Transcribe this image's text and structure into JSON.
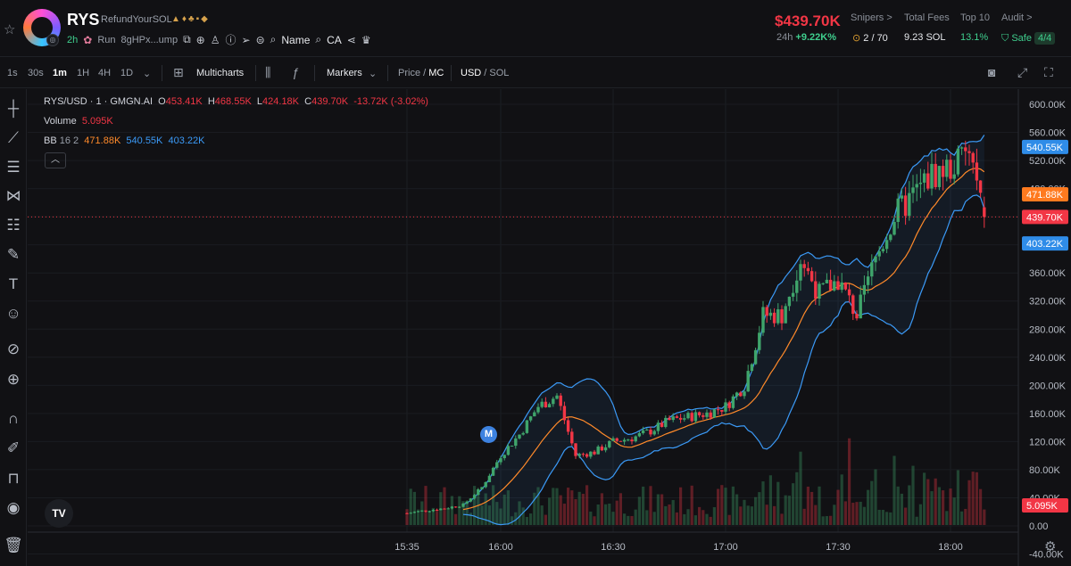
{
  "header": {
    "ticker": "RYS",
    "name": "RefundYourSOL",
    "age": "2h",
    "run_label": "Run",
    "address": "8gHPx...ump",
    "name_label": "Name",
    "ca_label": "CA",
    "price": "$439.70K",
    "change_label": "24h",
    "change_value": "+9.22K%",
    "snipers_label": "Snipers >",
    "snipers_value": "2 / 70",
    "fees_label": "Total Fees",
    "fees_value": "9.23 SOL",
    "top10_label": "Top 10",
    "top10_value": "13.1%",
    "audit_label": "Audit >",
    "audit_value": "Safe",
    "audit_score": "4/4"
  },
  "toolbar": {
    "intervals": [
      "1s",
      "30s",
      "1m",
      "1H",
      "4H",
      "1D"
    ],
    "active_interval": "1m",
    "multicharts": "Multicharts",
    "markers": "Markers",
    "price_label": "Price",
    "mc_label": "MC",
    "usd_label": "USD",
    "sol_label": "SOL"
  },
  "legend": {
    "symbol": "RYS/USD · 1 · GMGN.AI",
    "o_label": "O",
    "o": "453.41K",
    "h_label": "H",
    "h": "468.55K",
    "l_label": "L",
    "l": "424.18K",
    "c_label": "C",
    "c": "439.70K",
    "change": "-13.72K (-3.02%)",
    "volume_label": "Volume",
    "volume": "5.095K",
    "bb_label": "BB",
    "bb_params": "16 2",
    "bb_mid": "471.88K",
    "bb_upper": "540.55K",
    "bb_lower": "403.22K"
  },
  "marker_label": "M",
  "colors": {
    "up": "#3fa56b",
    "down": "#f23645",
    "bb_mid": "#ff8a2a",
    "bb_band": "#3b9af7",
    "bg": "#111114"
  },
  "chart_data": {
    "type": "candlestick",
    "title": "RYS/USD · 1 · GMGN.AI",
    "x_ticks": [
      "15:35",
      "16:00",
      "16:30",
      "17:00",
      "17:30",
      "18:00"
    ],
    "x_range": [
      "15:30",
      "18:11"
    ],
    "y_ticks": [
      "600.00K",
      "560.00K",
      "520.00K",
      "480.00K",
      "440.00K",
      "400.00K",
      "360.00K",
      "320.00K",
      "280.00K",
      "240.00K",
      "200.00K",
      "160.00K",
      "120.00K",
      "80.00K",
      "40.00K",
      "0.00",
      "-40.00K"
    ],
    "ylim": [
      -40,
      620
    ],
    "last_price_label": "439.70K",
    "badges": {
      "upper": "540.55K",
      "mid": "471.88K",
      "price": "439.70K",
      "lower": "403.22K",
      "volume": "5.095K"
    },
    "price_anchors": [
      {
        "t": "15:35",
        "v": 18
      },
      {
        "t": "15:40",
        "v": 22
      },
      {
        "t": "15:45",
        "v": 25
      },
      {
        "t": "15:50",
        "v": 30
      },
      {
        "t": "15:55",
        "v": 55
      },
      {
        "t": "16:00",
        "v": 100
      },
      {
        "t": "16:05",
        "v": 130
      },
      {
        "t": "16:10",
        "v": 170
      },
      {
        "t": "16:15",
        "v": 185
      },
      {
        "t": "16:20",
        "v": 100
      },
      {
        "t": "16:25",
        "v": 105
      },
      {
        "t": "16:30",
        "v": 120
      },
      {
        "t": "16:35",
        "v": 125
      },
      {
        "t": "16:40",
        "v": 135
      },
      {
        "t": "16:45",
        "v": 150
      },
      {
        "t": "16:50",
        "v": 155
      },
      {
        "t": "16:55",
        "v": 160
      },
      {
        "t": "17:00",
        "v": 170
      },
      {
        "t": "17:05",
        "v": 200
      },
      {
        "t": "17:10",
        "v": 300
      },
      {
        "t": "17:15",
        "v": 300
      },
      {
        "t": "17:20",
        "v": 380
      },
      {
        "t": "17:25",
        "v": 330
      },
      {
        "t": "17:30",
        "v": 350
      },
      {
        "t": "17:35",
        "v": 300
      },
      {
        "t": "17:40",
        "v": 380
      },
      {
        "t": "17:45",
        "v": 440
      },
      {
        "t": "17:50",
        "v": 470
      },
      {
        "t": "17:55",
        "v": 500
      },
      {
        "t": "18:00",
        "v": 510
      },
      {
        "t": "18:05",
        "v": 530
      },
      {
        "t": "18:09",
        "v": 440
      }
    ],
    "series": [
      {
        "name": "BB upper",
        "last": 540.55
      },
      {
        "name": "BB mid",
        "last": 471.88
      },
      {
        "name": "BB lower",
        "last": 403.22
      }
    ]
  }
}
